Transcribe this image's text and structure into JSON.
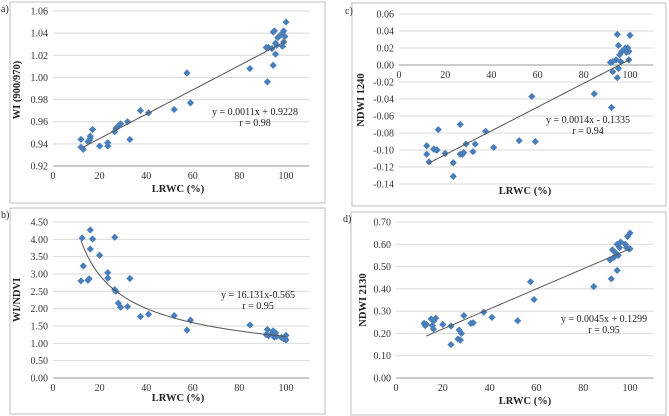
{
  "chart_data": [
    {
      "panel": "a)",
      "type": "scatter",
      "xlabel": "LRWC (%)",
      "ylabel": "WI (900/970)",
      "xlim": [
        0,
        110
      ],
      "ylim": [
        0.92,
        1.06
      ],
      "xticks": [
        "0",
        "20",
        "40",
        "60",
        "80",
        "100"
      ],
      "yticks": [
        "0.92",
        "0.94",
        "0.96",
        "0.98",
        "1.00",
        "1.02",
        "1.04",
        "1.06"
      ],
      "grid": true,
      "equation": "y = 0.0011x + 0.9228",
      "r": "r = 0.98",
      "fit": {
        "kind": "linear",
        "a": 0.0011,
        "b": 0.9228,
        "range": [
          13,
          100
        ]
      },
      "points": [
        [
          12,
          0.944
        ],
        [
          12,
          0.937
        ],
        [
          13,
          0.935
        ],
        [
          15,
          0.942
        ],
        [
          15.5,
          0.943
        ],
        [
          16,
          0.945
        ],
        [
          16,
          0.947
        ],
        [
          17,
          0.953
        ],
        [
          20,
          0.938
        ],
        [
          23.5,
          0.941
        ],
        [
          23.5,
          0.938
        ],
        [
          26.5,
          0.951
        ],
        [
          27,
          0.954
        ],
        [
          28,
          0.956
        ],
        [
          29,
          0.958
        ],
        [
          32,
          0.96
        ],
        [
          33,
          0.944
        ],
        [
          37.5,
          0.97
        ],
        [
          41,
          0.968
        ],
        [
          52,
          0.971
        ],
        [
          57.5,
          1.004
        ],
        [
          59,
          0.977
        ],
        [
          84.5,
          1.008
        ],
        [
          91.5,
          1.027
        ],
        [
          92,
          0.996
        ],
        [
          92.5,
          1.027
        ],
        [
          94,
          1.026
        ],
        [
          94.5,
          1.011
        ],
        [
          94.5,
          1.041
        ],
        [
          95,
          1.042
        ],
        [
          95.5,
          1.021
        ],
        [
          95.5,
          1.031
        ],
        [
          96,
          1.029
        ],
        [
          96.5,
          1.036
        ],
        [
          98,
          1.039
        ],
        [
          98.5,
          1.028
        ],
        [
          99,
          1.042
        ],
        [
          99,
          1.032
        ],
        [
          99.5,
          1.037
        ],
        [
          100,
          1.05
        ]
      ]
    },
    {
      "panel": "b)",
      "type": "scatter",
      "xlabel": "LRWC (%)",
      "ylabel": "WI/NDVI",
      "xlim": [
        0,
        110
      ],
      "ylim": [
        0,
        4.5
      ],
      "xticks": [
        "0",
        "20",
        "40",
        "60",
        "80",
        "100"
      ],
      "yticks": [
        "0.00",
        "0.50",
        "1.00",
        "1.50",
        "2.00",
        "2.50",
        "3.00",
        "3.50",
        "4.00",
        "4.50"
      ],
      "grid": true,
      "equation": "y = 16.131x-0.565",
      "r": "r = 0.95",
      "fit": {
        "kind": "power",
        "a": 16.131,
        "b": -0.565,
        "range": [
          12,
          100
        ]
      },
      "points": [
        [
          12,
          2.8
        ],
        [
          12.5,
          4.04
        ],
        [
          13,
          3.23
        ],
        [
          15,
          2.82
        ],
        [
          15.5,
          2.86
        ],
        [
          16,
          4.27
        ],
        [
          16,
          3.72
        ],
        [
          17,
          4.01
        ],
        [
          20,
          3.54
        ],
        [
          23.5,
          3.04
        ],
        [
          23.5,
          2.88
        ],
        [
          26.5,
          4.06
        ],
        [
          26.5,
          2.55
        ],
        [
          27,
          2.5
        ],
        [
          28,
          2.16
        ],
        [
          29,
          2.04
        ],
        [
          32,
          2.06
        ],
        [
          33,
          2.87
        ],
        [
          37.5,
          1.77
        ],
        [
          41,
          1.84
        ],
        [
          52,
          1.8
        ],
        [
          57.5,
          1.38
        ],
        [
          59,
          1.67
        ],
        [
          84.5,
          1.53
        ],
        [
          91.5,
          1.25
        ],
        [
          92,
          1.4
        ],
        [
          92.5,
          1.22
        ],
        [
          94,
          1.28
        ],
        [
          94.5,
          1.36
        ],
        [
          95,
          1.18
        ],
        [
          95.5,
          1.3
        ],
        [
          96,
          1.2
        ],
        [
          98,
          1.17
        ],
        [
          99,
          1.13
        ],
        [
          99.5,
          1.14
        ],
        [
          100,
          1.23
        ],
        [
          100,
          1.1
        ]
      ]
    },
    {
      "panel": "c)",
      "type": "scatter",
      "xlabel": "LRWC (%)",
      "ylabel": "NDWI  1240",
      "xlim": [
        0,
        110
      ],
      "ylim": [
        -0.14,
        0.06
      ],
      "xticks": [
        "0",
        "20",
        "40",
        "60",
        "80",
        "100"
      ],
      "yticks": [
        "-0.14",
        "-0.12",
        "-0.10",
        "-0.08",
        "-0.06",
        "-0.04",
        "-0.02",
        "0.00",
        "0.02",
        "0.04",
        "0.06"
      ],
      "grid": true,
      "equation": "y = 0.0014x - 0.1335",
      "r": "r = 0.94",
      "fit": {
        "kind": "linear",
        "a": 0.0014,
        "b": -0.1335,
        "range": [
          13,
          100
        ]
      },
      "points": [
        [
          12,
          -0.095
        ],
        [
          12,
          -0.105
        ],
        [
          13,
          -0.114
        ],
        [
          15,
          -0.099
        ],
        [
          16,
          -0.1
        ],
        [
          16.5,
          -0.1
        ],
        [
          17,
          -0.076
        ],
        [
          20,
          -0.104
        ],
        [
          23.5,
          -0.115
        ],
        [
          23.5,
          -0.131
        ],
        [
          26.5,
          -0.07
        ],
        [
          26.5,
          -0.105
        ],
        [
          27.5,
          -0.105
        ],
        [
          28,
          -0.103
        ],
        [
          29,
          -0.093
        ],
        [
          32,
          -0.102
        ],
        [
          33,
          -0.093
        ],
        [
          37.5,
          -0.078
        ],
        [
          41,
          -0.097
        ],
        [
          52,
          -0.089
        ],
        [
          57.5,
          -0.037
        ],
        [
          59,
          -0.09
        ],
        [
          84.5,
          -0.034
        ],
        [
          91.5,
          0.003
        ],
        [
          92,
          -0.05
        ],
        [
          92.5,
          -0.008
        ],
        [
          92.5,
          0.004
        ],
        [
          94,
          0.006
        ],
        [
          94.5,
          0.036
        ],
        [
          94.5,
          -0.015
        ],
        [
          95,
          0.023
        ],
        [
          95,
          -0.004
        ],
        [
          95.5,
          0.012
        ],
        [
          96,
          0.004
        ],
        [
          96.5,
          0.016
        ],
        [
          98,
          0.02
        ],
        [
          98.5,
          0.015
        ],
        [
          99,
          0.02
        ],
        [
          99.5,
          0.016
        ],
        [
          99.5,
          0.006
        ],
        [
          100,
          0.035
        ]
      ]
    },
    {
      "panel": "d)",
      "type": "scatter",
      "xlabel": "LRWC (%)",
      "ylabel": "NDWI  2130",
      "xlim": [
        0,
        110
      ],
      "ylim": [
        0,
        0.7
      ],
      "xticks": [
        "0",
        "20",
        "40",
        "60",
        "80",
        "100"
      ],
      "yticks": [
        "0.00",
        "0.10",
        "0.20",
        "0.30",
        "0.40",
        "0.50",
        "0.60",
        "0.70"
      ],
      "grid": true,
      "equation": "y = 0.0045x + 0.1299",
      "r": "r = 0.95",
      "fit": {
        "kind": "linear",
        "a": 0.0045,
        "b": 0.1299,
        "range": [
          13,
          100
        ]
      },
      "points": [
        [
          12,
          0.245
        ],
        [
          12.5,
          0.235
        ],
        [
          13,
          0.24
        ],
        [
          15,
          0.265
        ],
        [
          15.5,
          0.235
        ],
        [
          16,
          0.255
        ],
        [
          16,
          0.22
        ],
        [
          17,
          0.268
        ],
        [
          20,
          0.24
        ],
        [
          23.5,
          0.233
        ],
        [
          23.5,
          0.15
        ],
        [
          26.5,
          0.175
        ],
        [
          27,
          0.215
        ],
        [
          27.5,
          0.17
        ],
        [
          28,
          0.2
        ],
        [
          29,
          0.28
        ],
        [
          32,
          0.245
        ],
        [
          33,
          0.248
        ],
        [
          37.5,
          0.295
        ],
        [
          41,
          0.272
        ],
        [
          52,
          0.257
        ],
        [
          57.5,
          0.432
        ],
        [
          59,
          0.352
        ],
        [
          84.5,
          0.41
        ],
        [
          91.5,
          0.53
        ],
        [
          92,
          0.445
        ],
        [
          92.5,
          0.575
        ],
        [
          93,
          0.54
        ],
        [
          94,
          0.56
        ],
        [
          94.5,
          0.483
        ],
        [
          94.5,
          0.6
        ],
        [
          95,
          0.55
        ],
        [
          95.5,
          0.585
        ],
        [
          96,
          0.61
        ],
        [
          98,
          0.6
        ],
        [
          98.5,
          0.585
        ],
        [
          99,
          0.635
        ],
        [
          99.5,
          0.58
        ],
        [
          100,
          0.65
        ],
        [
          100,
          0.58
        ]
      ]
    }
  ],
  "colors": {
    "marker": "#4a7ebb",
    "grid": "#d9d9d9",
    "fit": "#555555",
    "frame": "#bfbfbf"
  }
}
